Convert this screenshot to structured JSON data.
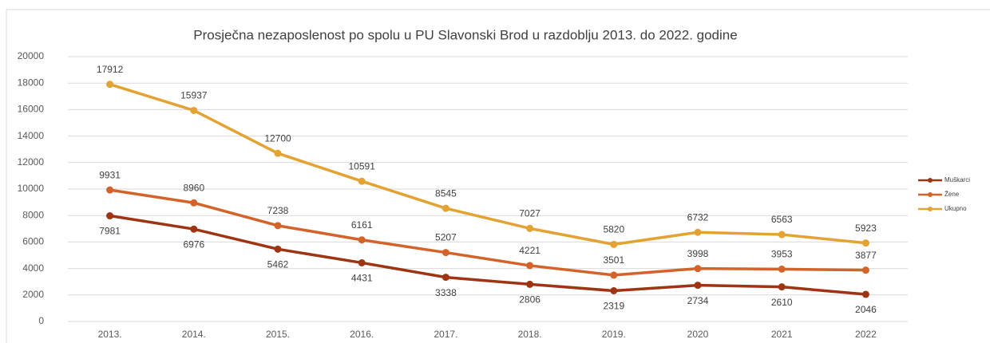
{
  "chart_data": {
    "type": "line",
    "title": "Prosječna nezaposlenost po spolu u PU Slavonski Brod  u razdoblju 2013. do 2022. godine",
    "categories": [
      "2013.",
      "2014.",
      "2015.",
      "2016.",
      "2017.",
      "2018.",
      "2019.",
      "2020",
      "2021",
      "2022"
    ],
    "series": [
      {
        "name": "Muškarci",
        "color": "#9e3412",
        "values": [
          7981,
          6976,
          5462,
          4431,
          3338,
          2806,
          2319,
          2734,
          2610,
          2046
        ]
      },
      {
        "name": "Žene",
        "color": "#d4632a",
        "values": [
          9931,
          8960,
          7238,
          6161,
          5207,
          4221,
          3501,
          3998,
          3953,
          3877
        ]
      },
      {
        "name": "Ukupno",
        "color": "#e3a232",
        "values": [
          17912,
          15937,
          12700,
          10591,
          8545,
          7027,
          5820,
          6732,
          6563,
          5923
        ]
      }
    ],
    "ylim": [
      0,
      20000
    ],
    "yticks": [
      0,
      2000,
      4000,
      6000,
      8000,
      10000,
      12000,
      14000,
      16000,
      18000,
      20000
    ],
    "grid": true,
    "legend": "right"
  }
}
